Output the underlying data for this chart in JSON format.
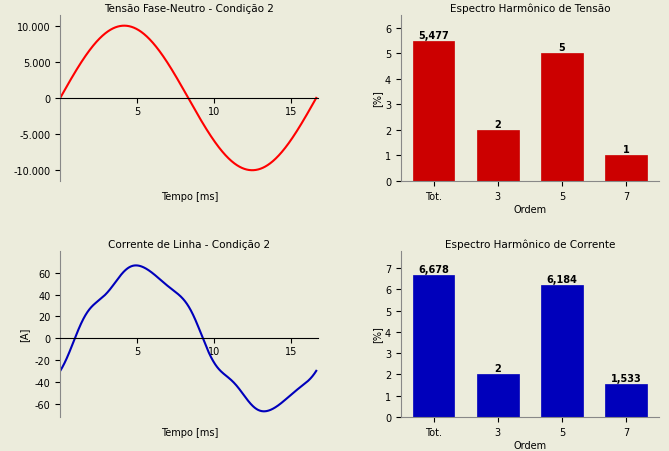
{
  "voltage_title": "Tensão Fase-Neutro - Condição 2",
  "voltage_xlabel": "Tempo [ms]",
  "voltage_amplitude": 10000,
  "voltage_ytick_labels": [
    "-10.000",
    "-5.000",
    "0",
    "5.000",
    "10.000"
  ],
  "voltage_yticks": [
    -10000,
    -5000,
    0,
    5000,
    10000
  ],
  "voltage_xticks": [
    5,
    10,
    15
  ],
  "voltage_xlim": [
    0,
    16.8
  ],
  "voltage_ylim": [
    -11500,
    11500
  ],
  "voltage_color": "#ff0000",
  "current_title": "Corrente de Linha - Condição 2",
  "current_xlabel": "Tempo [ms]",
  "current_ylabel": "[A]",
  "current_yticks": [
    -60,
    -40,
    -20,
    0,
    20,
    40,
    60
  ],
  "current_xticks": [
    5,
    10,
    15
  ],
  "current_xlim": [
    0,
    16.8
  ],
  "current_ylim": [
    -72,
    80
  ],
  "current_color": "#0000bb",
  "vspectrum_title": "Espectro Harmônico de Tensão",
  "vspectrum_categories": [
    "Tot.",
    "3",
    "5",
    "7"
  ],
  "vspectrum_values": [
    5.477,
    2.0,
    5.0,
    1.0
  ],
  "vspectrum_labels": [
    "5,477",
    "2",
    "5",
    "1"
  ],
  "vspectrum_xlabel": "Ordem",
  "vspectrum_ylabel": "[%]",
  "vspectrum_ylim": [
    0,
    6.5
  ],
  "vspectrum_yticks": [
    0,
    1,
    2,
    3,
    4,
    5,
    6
  ],
  "vspectrum_color": "#cc0000",
  "ispectrum_title": "Espectro Harmônico de Corrente",
  "ispectrum_categories": [
    "Tot.",
    "3",
    "5",
    "7"
  ],
  "ispectrum_values": [
    6.678,
    2.0,
    6.184,
    1.533
  ],
  "ispectrum_labels": [
    "6,678",
    "2",
    "6,184",
    "1,533"
  ],
  "ispectrum_xlabel": "Ordem",
  "ispectrum_ylabel": "[%]",
  "ispectrum_ylim": [
    0,
    7.8
  ],
  "ispectrum_yticks": [
    0,
    1,
    2,
    3,
    4,
    5,
    6,
    7
  ],
  "ispectrum_color": "#0000bb",
  "fig_facecolor": "#ececdc",
  "axes_facecolor": "#ececdc",
  "spine_color": "#888888"
}
